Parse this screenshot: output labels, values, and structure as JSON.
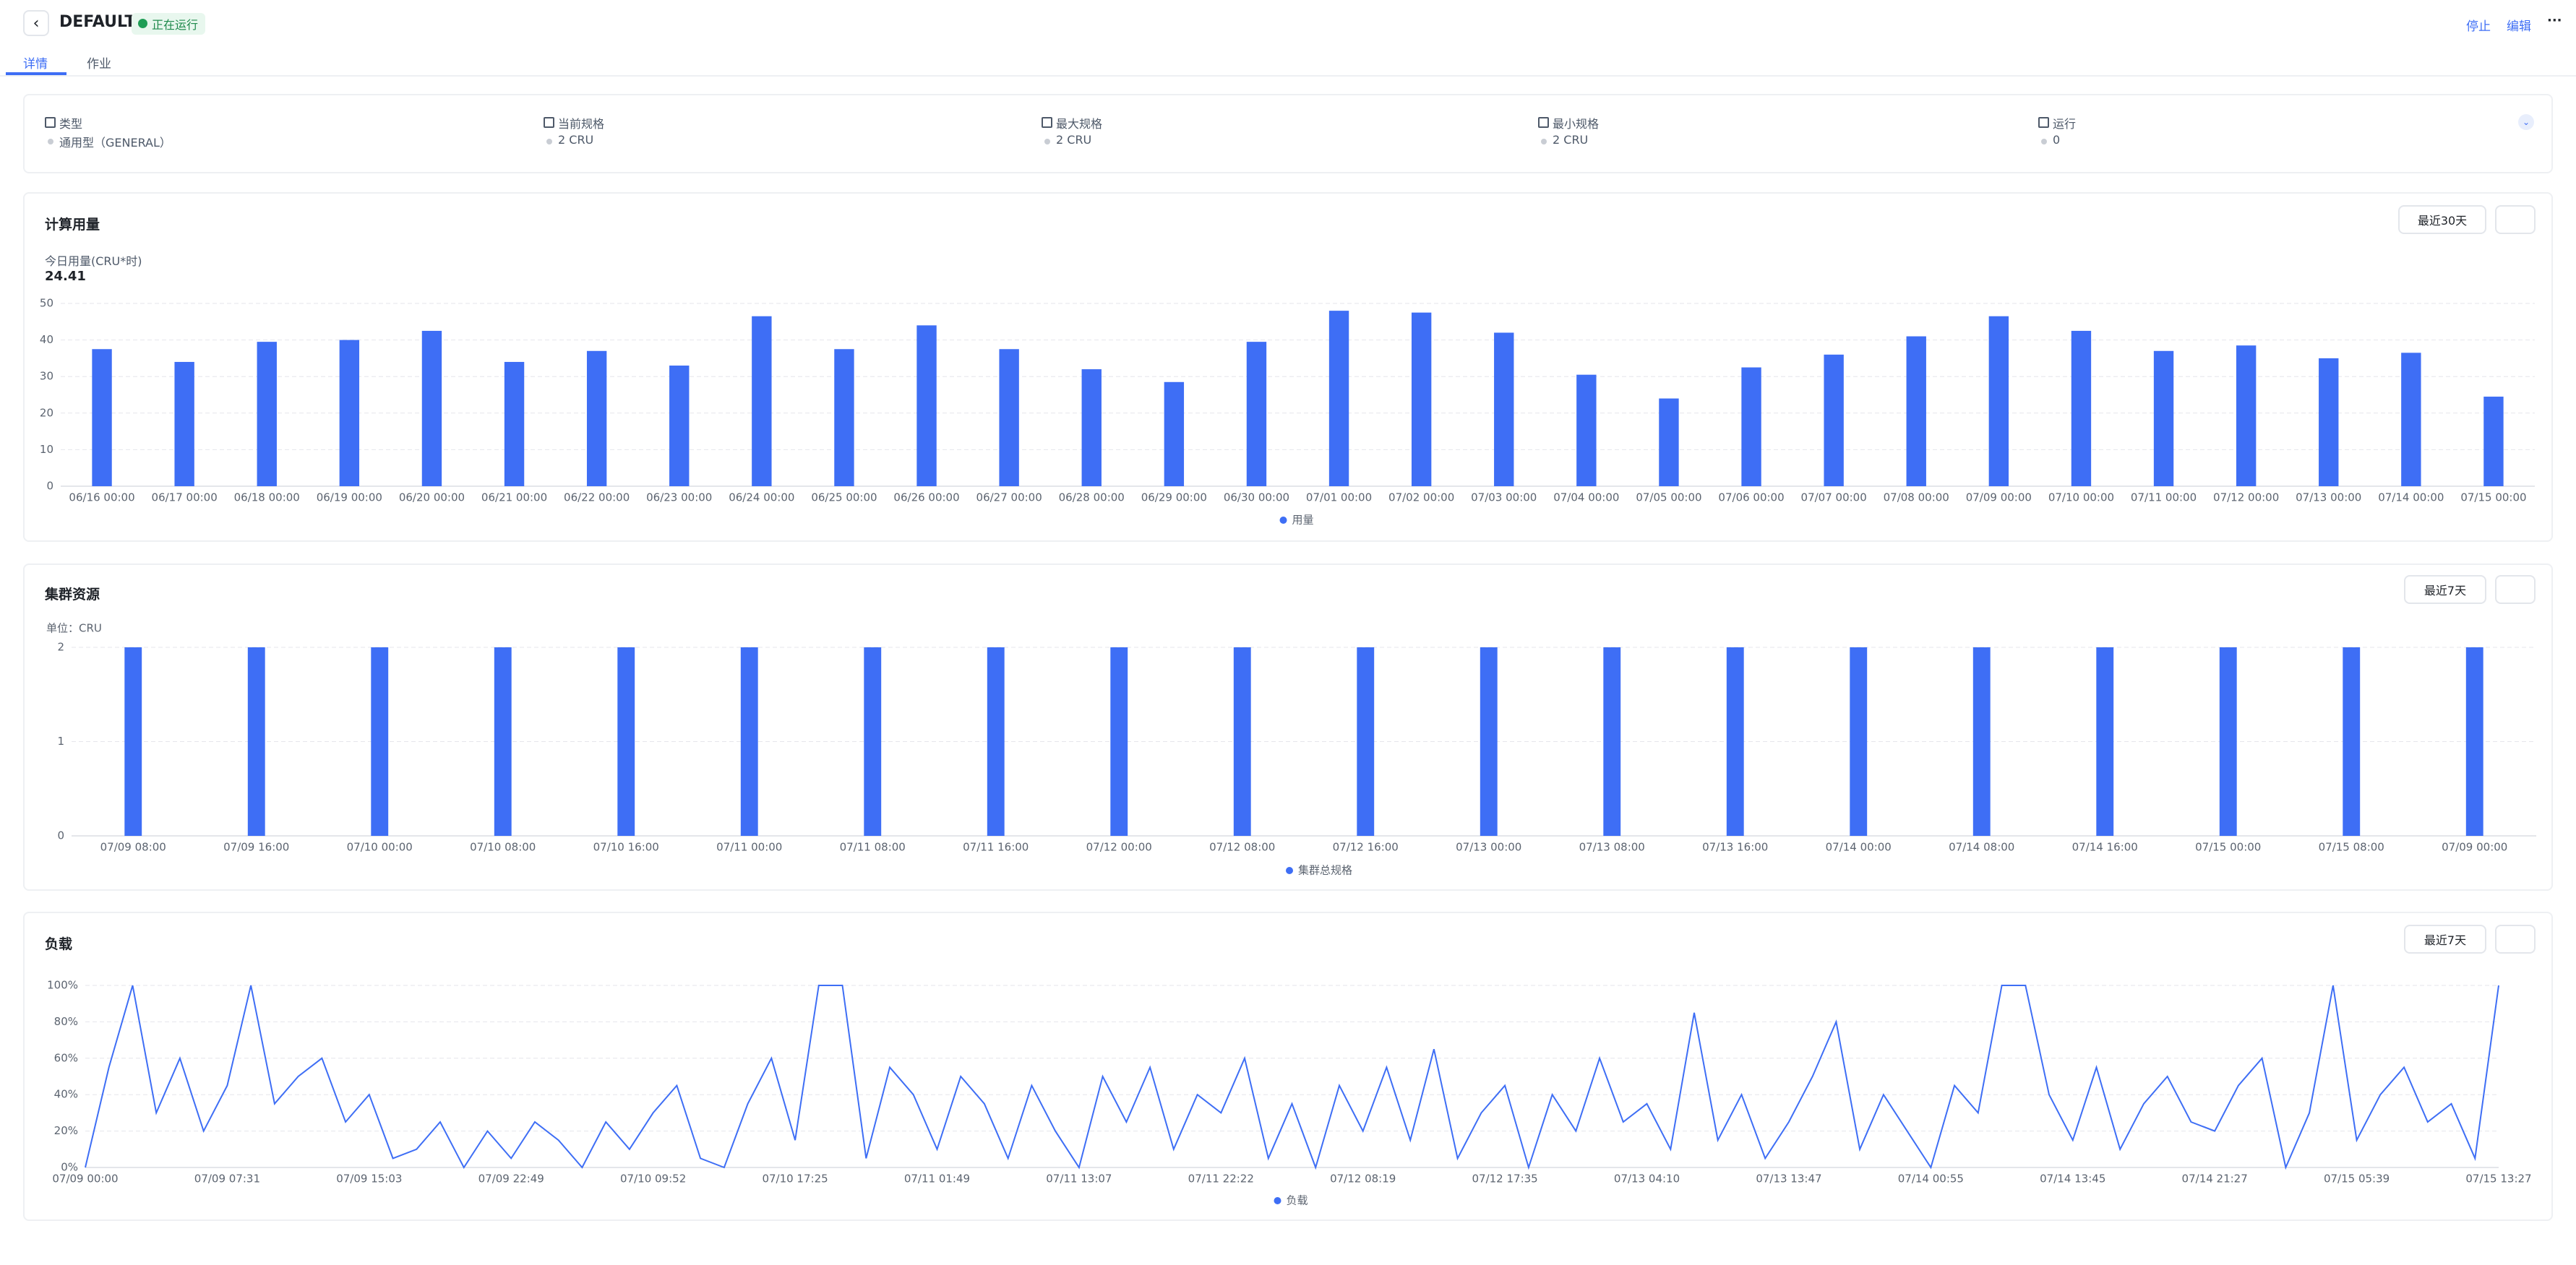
{
  "header": {
    "back": "‹",
    "title": "DEFAULT",
    "status": "正在运行",
    "actions": [
      "停止",
      "编辑",
      "···"
    ]
  },
  "tabs": [
    "详情",
    "作业"
  ],
  "info": [
    {
      "label": "类型",
      "value": "通用型（GENERAL）"
    },
    {
      "label": "当前规格",
      "value": "2 CRU"
    },
    {
      "label": "最大规格",
      "value": "2 CRU"
    },
    {
      "label": "最小规格",
      "value": "2 CRU"
    },
    {
      "label": "运行",
      "value": "0"
    }
  ],
  "sections": [
    {
      "title": "计算用量",
      "range": "最近30天"
    },
    {
      "title": "集群资源",
      "range": "最近7天"
    },
    {
      "title": "负载",
      "range": "最近7天"
    }
  ],
  "usage_today": {
    "label": "今日用量(CRU*时)",
    "value": "24.41"
  },
  "chart_data": [
    {
      "type": "bar",
      "categories": [
        "06/16 00:00",
        "06/17 00:00",
        "06/18 00:00",
        "06/19 00:00",
        "06/20 00:00",
        "06/21 00:00",
        "06/22 00:00",
        "06/23 00:00",
        "06/24 00:00",
        "06/25 00:00",
        "06/26 00:00",
        "06/27 00:00",
        "06/28 00:00",
        "06/29 00:00",
        "06/30 00:00",
        "07/01 00:00",
        "07/02 00:00",
        "07/03 00:00",
        "07/04 00:00",
        "07/05 00:00",
        "07/06 00:00",
        "07/07 00:00",
        "07/08 00:00",
        "07/09 00:00",
        "07/10 00:00",
        "07/11 00:00",
        "07/12 00:00",
        "07/13 00:00",
        "07/14 00:00",
        "07/15 00:00"
      ],
      "series": [
        {
          "name": "用量",
          "color": "#3e6ef5",
          "values": [
            37.5,
            34,
            39.5,
            40,
            42.5,
            34,
            37,
            33,
            46.5,
            37.5,
            44,
            37.5,
            32,
            28.5,
            39.5,
            48,
            47.5,
            42,
            30.5,
            24,
            32.5,
            36,
            41,
            46.5,
            42.5,
            37,
            38.5,
            35,
            36.5,
            24.5
          ]
        }
      ],
      "ylim": [
        0,
        50
      ],
      "yticks": [
        0,
        10,
        20,
        30,
        40,
        50
      ],
      "grid": true
    },
    {
      "type": "bar",
      "unit_label": "单位：CRU",
      "categories": [
        "07/09 08:00",
        "07/09 16:00",
        "07/10 00:00",
        "07/10 08:00",
        "07/10 16:00",
        "07/11 00:00",
        "07/11 08:00",
        "07/11 16:00",
        "07/12 00:00",
        "07/12 08:00",
        "07/12 16:00",
        "07/13 00:00",
        "07/13 08:00",
        "07/13 16:00",
        "07/14 00:00",
        "07/14 08:00",
        "07/14 16:00",
        "07/15 00:00",
        "07/15 08:00",
        "07/09 00:00"
      ],
      "series": [
        {
          "name": "集群总规格",
          "color": "#3e6ef5",
          "values": [
            2,
            2,
            2,
            2,
            2,
            2,
            2,
            2,
            2,
            2,
            2,
            2,
            2,
            2,
            2,
            2,
            2,
            2,
            2,
            2
          ]
        }
      ],
      "ylim": [
        0,
        2
      ],
      "yticks": [
        0,
        1,
        2
      ],
      "grid": true
    },
    {
      "type": "line",
      "categories": [
        "07/09 00:00",
        null,
        null,
        null,
        null,
        null,
        "07/09 07:31",
        null,
        null,
        null,
        null,
        null,
        "07/09 15:03",
        null,
        null,
        null,
        null,
        null,
        "07/09 22:49",
        null,
        null,
        null,
        null,
        null,
        "07/10 09:52",
        null,
        null,
        null,
        null,
        null,
        "07/10 17:25",
        null,
        null,
        null,
        null,
        null,
        "07/11 01:49",
        null,
        null,
        null,
        null,
        null,
        "07/11 13:07",
        null,
        null,
        null,
        null,
        null,
        "07/11 22:22",
        null,
        null,
        null,
        null,
        null,
        "07/12 08:19",
        null,
        null,
        null,
        null,
        null,
        "07/12 17:35",
        null,
        null,
        null,
        null,
        null,
        "07/13 04:10",
        null,
        null,
        null,
        null,
        null,
        "07/13 13:47",
        null,
        null,
        null,
        null,
        null,
        "07/14 00:55",
        null,
        null,
        null,
        null,
        null,
        "07/14 13:45",
        null,
        null,
        null,
        null,
        null,
        "07/14 21:27",
        null,
        null,
        null,
        null,
        null,
        "07/15 05:39",
        null,
        null,
        null,
        null,
        null,
        "07/15 13:27"
      ],
      "series": [
        {
          "name": "负载",
          "color": "#3e6ef5",
          "values": [
            0,
            55,
            100,
            30,
            60,
            20,
            45,
            100,
            35,
            50,
            60,
            25,
            40,
            5,
            10,
            25,
            0,
            20,
            5,
            25,
            15,
            0,
            25,
            10,
            30,
            45,
            5,
            0,
            35,
            60,
            15,
            100,
            100,
            5,
            55,
            40,
            10,
            50,
            35,
            5,
            45,
            20,
            0,
            50,
            25,
            55,
            10,
            40,
            30,
            60,
            5,
            35,
            0,
            45,
            20,
            55,
            15,
            65,
            5,
            30,
            45,
            0,
            40,
            20,
            60,
            25,
            35,
            10,
            85,
            15,
            40,
            5,
            25,
            50,
            80,
            10,
            40,
            20,
            0,
            45,
            30,
            100,
            100,
            40,
            15,
            55,
            10,
            35,
            50,
            25,
            20,
            45,
            60,
            0,
            30,
            100,
            15,
            40,
            55,
            25,
            35,
            5,
            100
          ]
        }
      ],
      "ylim": [
        0,
        100
      ],
      "yticks": [
        {
          "value": 0,
          "label": "0%"
        },
        {
          "value": 20,
          "label": "20%"
        },
        {
          "value": 40,
          "label": "40%"
        },
        {
          "value": 60,
          "label": "60%"
        },
        {
          "value": 80,
          "label": "80%"
        },
        {
          "value": 100,
          "label": "100%"
        }
      ],
      "grid": true
    }
  ]
}
